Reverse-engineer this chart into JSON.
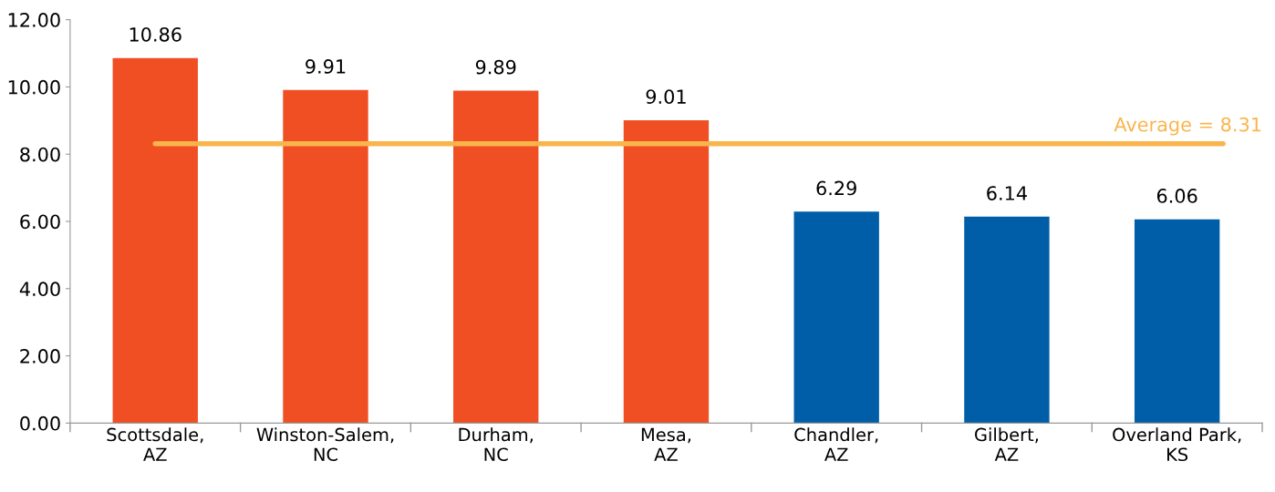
{
  "chart_data": {
    "type": "bar",
    "categories": [
      "Scottsdale,\nAZ",
      "Winston-Salem,\nNC",
      "Durham,\nNC",
      "Mesa,\nAZ",
      "Chandler,\nAZ",
      "Gilbert,\nAZ",
      "Overland Park,\nKS"
    ],
    "values": [
      10.86,
      9.91,
      9.89,
      9.01,
      6.29,
      6.14,
      6.06
    ],
    "colors": [
      "#f04e23",
      "#f04e23",
      "#f04e23",
      "#f04e23",
      "#005ea8",
      "#005ea8",
      "#005ea8"
    ],
    "data_labels": true,
    "ylim": [
      0,
      12
    ],
    "yticks": [
      {
        "value": 0,
        "label": "0.00"
      },
      {
        "value": 2,
        "label": "2.00"
      },
      {
        "value": 4,
        "label": "4.00"
      },
      {
        "value": 6,
        "label": "6.00"
      },
      {
        "value": 8,
        "label": "8.00"
      },
      {
        "value": 10,
        "label": "10.00"
      },
      {
        "value": 12,
        "label": "12.00"
      }
    ],
    "ref_lines": [
      {
        "axis": "y",
        "value": 8.31,
        "label": "Average = 8.31",
        "color": "#f9b54c"
      }
    ],
    "grid": false,
    "legend": false
  }
}
